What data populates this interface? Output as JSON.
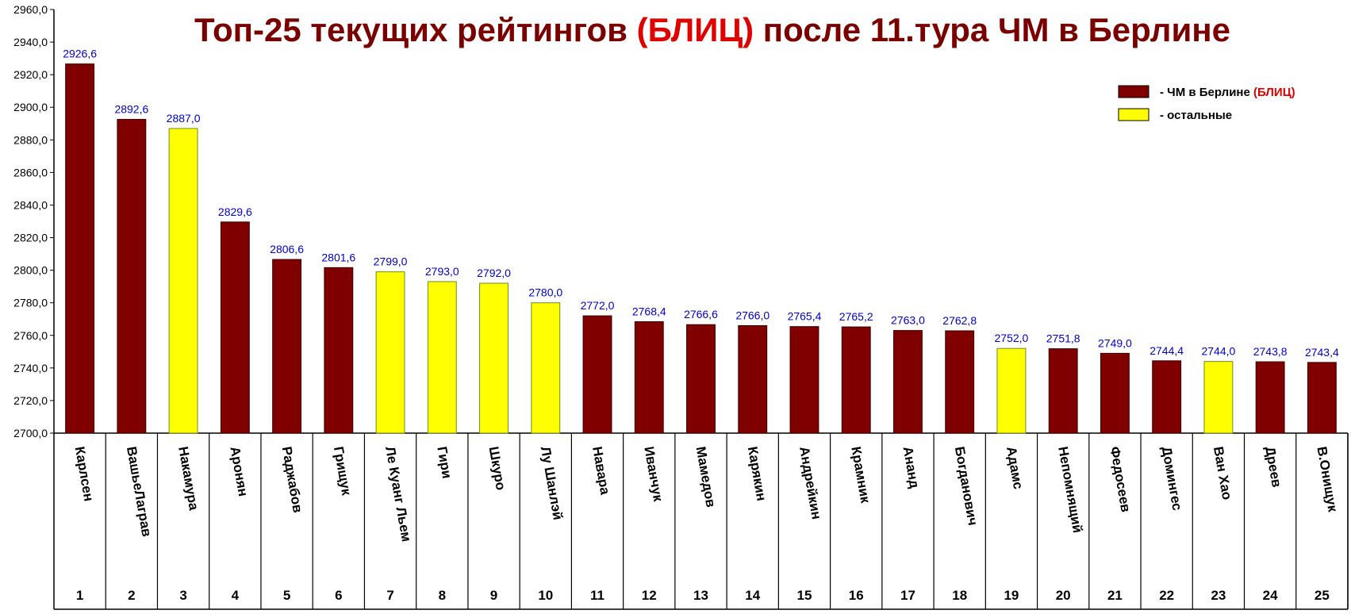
{
  "colors": {
    "berlin": "#800000",
    "others": "#ffff00",
    "value_label": "#0000cc",
    "title": "#7a0000",
    "accent": "#e00000"
  },
  "chart_data": {
    "type": "bar",
    "title": {
      "part1": "Топ-25 текущих рейтингов ",
      "accent": "(БЛИЦ)",
      "part2": " после 11.тура ЧМ в Берлине"
    },
    "ylim": [
      2700,
      2960
    ],
    "y_ticks": [
      "2700,0",
      "2720,0",
      "2740,0",
      "2760,0",
      "2780,0",
      "2800,0",
      "2820,0",
      "2840,0",
      "2860,0",
      "2880,0",
      "2900,0",
      "2920,0",
      "2940,0",
      "2960,0"
    ],
    "grid": false,
    "legend": {
      "placement": "top-right",
      "items": [
        {
          "text": "- ЧМ в Берлине ",
          "accent": "(БЛИЦ)",
          "series": "berlin"
        },
        {
          "text": "- остальные",
          "accent": "",
          "series": "others"
        }
      ]
    },
    "categories": [
      "Карлсен",
      "ВашьеЛаграв",
      "Накамура",
      "Аронян",
      "Раджабов",
      "Грищук",
      "Ле Куанг Льем",
      "Гири",
      "Шкуро",
      "Лу Шанлэй",
      "Навара",
      "Иванчук",
      "Мамедов",
      "Карякин",
      "Андрейкин",
      "Крамник",
      "Ананд",
      "Богданович",
      "Адамс",
      "Непомнящий",
      "Федосеев",
      "Домингес",
      "Ван Хао",
      "Дреев",
      "В.Онищук"
    ],
    "ranks": [
      "1",
      "2",
      "3",
      "4",
      "5",
      "6",
      "7",
      "8",
      "9",
      "10",
      "11",
      "12",
      "13",
      "14",
      "15",
      "16",
      "17",
      "18",
      "19",
      "20",
      "21",
      "22",
      "23",
      "24",
      "25"
    ],
    "values": [
      2926.6,
      2892.6,
      2887.0,
      2829.6,
      2806.6,
      2801.6,
      2799.0,
      2793.0,
      2792.0,
      2780.0,
      2772.0,
      2768.4,
      2766.6,
      2766.0,
      2765.4,
      2765.2,
      2763.0,
      2762.8,
      2752.0,
      2751.8,
      2749.0,
      2744.4,
      2744.0,
      2743.8,
      2743.4
    ],
    "value_labels": [
      "2926,6",
      "2892,6",
      "2887,0",
      "2829,6",
      "2806,6",
      "2801,6",
      "2799,0",
      "2793,0",
      "2792,0",
      "2780,0",
      "2772,0",
      "2768,4",
      "2766,6",
      "2766,0",
      "2765,4",
      "2765,2",
      "2763,0",
      "2762,8",
      "2752,0",
      "2751,8",
      "2749,0",
      "2744,4",
      "2744,0",
      "2743,8",
      "2743,4"
    ],
    "series_of_bar": [
      "berlin",
      "berlin",
      "others",
      "berlin",
      "berlin",
      "berlin",
      "others",
      "others",
      "others",
      "others",
      "berlin",
      "berlin",
      "berlin",
      "berlin",
      "berlin",
      "berlin",
      "berlin",
      "berlin",
      "others",
      "berlin",
      "berlin",
      "berlin",
      "others",
      "berlin",
      "berlin"
    ]
  }
}
